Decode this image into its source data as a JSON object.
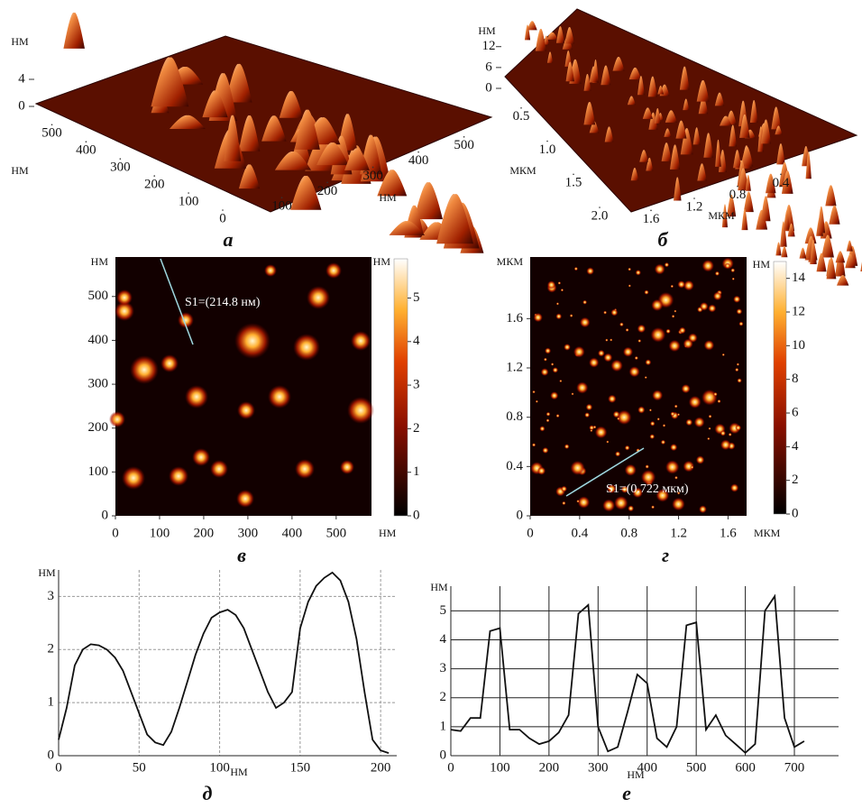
{
  "chart_data": [
    {
      "type": "surface3d",
      "caption": "а",
      "zlabel": "НМ",
      "zlim": [
        0,
        8
      ],
      "zticks": [
        0,
        4
      ],
      "ylabel": "НМ",
      "ylim": [
        0,
        570
      ],
      "yticks": [
        0,
        100,
        200,
        300,
        400,
        500
      ],
      "xlabel": "НМ",
      "xlim": [
        0,
        570
      ],
      "xticks": [
        100,
        200,
        300,
        400,
        500
      ]
    },
    {
      "type": "surface3d",
      "caption": "б",
      "zlabel": "НМ",
      "zlim": [
        0,
        14
      ],
      "zticks": [
        0,
        6,
        12
      ],
      "ylabel": "МКМ",
      "ylim": [
        0,
        2.0
      ],
      "yticks": [
        0.5,
        {
          "value": 1,
          "label": "1.0"
        },
        1.5,
        {
          "value": 2,
          "label": "2.0"
        }
      ],
      "xlabel": "МКМ",
      "xlim": [
        0,
        1.8
      ],
      "xticks": [
        0.4,
        0.8,
        1.2,
        1.6
      ]
    },
    {
      "type": "heatmap",
      "caption": "в",
      "annotation": "S1=(214.8 нм)",
      "xlabel": "НМ",
      "xlim": [
        0,
        580
      ],
      "xticks": [
        0,
        100,
        200,
        300,
        400,
        500
      ],
      "ylabel": "НМ",
      "ylim": [
        0,
        590
      ],
      "yticks": [
        0,
        100,
        200,
        300,
        400,
        500
      ],
      "colorbar_label": "НМ",
      "clim": [
        0,
        5.9
      ],
      "cticks": [
        0,
        1,
        2,
        3,
        4,
        5
      ]
    },
    {
      "type": "heatmap",
      "caption": "г",
      "annotation": "S1=(0.722 мкм)",
      "xlabel": "МКМ",
      "xlim": [
        0,
        1.75
      ],
      "xticks": [
        0,
        0.4,
        0.8,
        1.2,
        1.6
      ],
      "ylabel": "МКМ",
      "ylim": [
        0,
        2.1
      ],
      "yticks": [
        0,
        0.4,
        0.8,
        1.2,
        1.6
      ],
      "colorbar_label": "НМ",
      "clim": [
        0,
        15
      ],
      "cticks": [
        0,
        2,
        4,
        6,
        8,
        10,
        12,
        14
      ]
    },
    {
      "type": "line",
      "caption": "д",
      "xlabel": "НМ",
      "ylabel": "НМ",
      "color": "#111111",
      "grid": true,
      "xlim": [
        0,
        210
      ],
      "xticks": [
        0,
        50,
        100,
        150,
        200
      ],
      "ylim": [
        0,
        3.5
      ],
      "yticks": [
        0,
        1,
        2,
        3
      ],
      "x": [
        0,
        5,
        10,
        15,
        20,
        25,
        30,
        35,
        40,
        45,
        50,
        55,
        60,
        65,
        70,
        75,
        80,
        85,
        90,
        95,
        100,
        105,
        110,
        115,
        120,
        125,
        130,
        135,
        140,
        145,
        150,
        155,
        160,
        165,
        170,
        175,
        180,
        185,
        190,
        195,
        200,
        205
      ],
      "values": [
        0.3,
        0.9,
        1.7,
        2.0,
        2.1,
        2.08,
        2.0,
        1.85,
        1.6,
        1.2,
        0.8,
        0.4,
        0.25,
        0.2,
        0.45,
        0.9,
        1.4,
        1.9,
        2.3,
        2.6,
        2.7,
        2.75,
        2.65,
        2.4,
        2.0,
        1.6,
        1.2,
        0.9,
        1.0,
        1.2,
        2.4,
        2.9,
        3.2,
        3.35,
        3.45,
        3.3,
        2.9,
        2.2,
        1.2,
        0.3,
        0.1,
        0.05
      ]
    },
    {
      "type": "line",
      "caption": "е",
      "xlabel": "НМ",
      "ylabel": "НМ",
      "color": "#111111",
      "grid": true,
      "xlim": [
        0,
        790
      ],
      "xticks": [
        0,
        100,
        200,
        300,
        400,
        500,
        600,
        700
      ],
      "ylim": [
        0,
        5.85
      ],
      "yticks": [
        0,
        1,
        2,
        3,
        4,
        5
      ],
      "x": [
        0,
        20,
        40,
        60,
        80,
        100,
        120,
        140,
        160,
        180,
        200,
        220,
        240,
        260,
        280,
        300,
        320,
        340,
        360,
        380,
        400,
        420,
        440,
        460,
        480,
        500,
        520,
        540,
        560,
        580,
        600,
        620,
        640,
        660,
        680,
        700,
        720
      ],
      "values": [
        0.9,
        0.85,
        1.3,
        1.3,
        4.3,
        4.4,
        0.9,
        0.9,
        0.6,
        0.4,
        0.5,
        0.8,
        1.4,
        4.9,
        5.2,
        1.0,
        0.15,
        0.3,
        1.5,
        2.8,
        2.5,
        0.6,
        0.3,
        1.0,
        4.5,
        4.6,
        0.9,
        1.4,
        0.7,
        0.4,
        0.1,
        0.4,
        5.0,
        5.5,
        1.3,
        0.3,
        0.5
      ]
    }
  ]
}
